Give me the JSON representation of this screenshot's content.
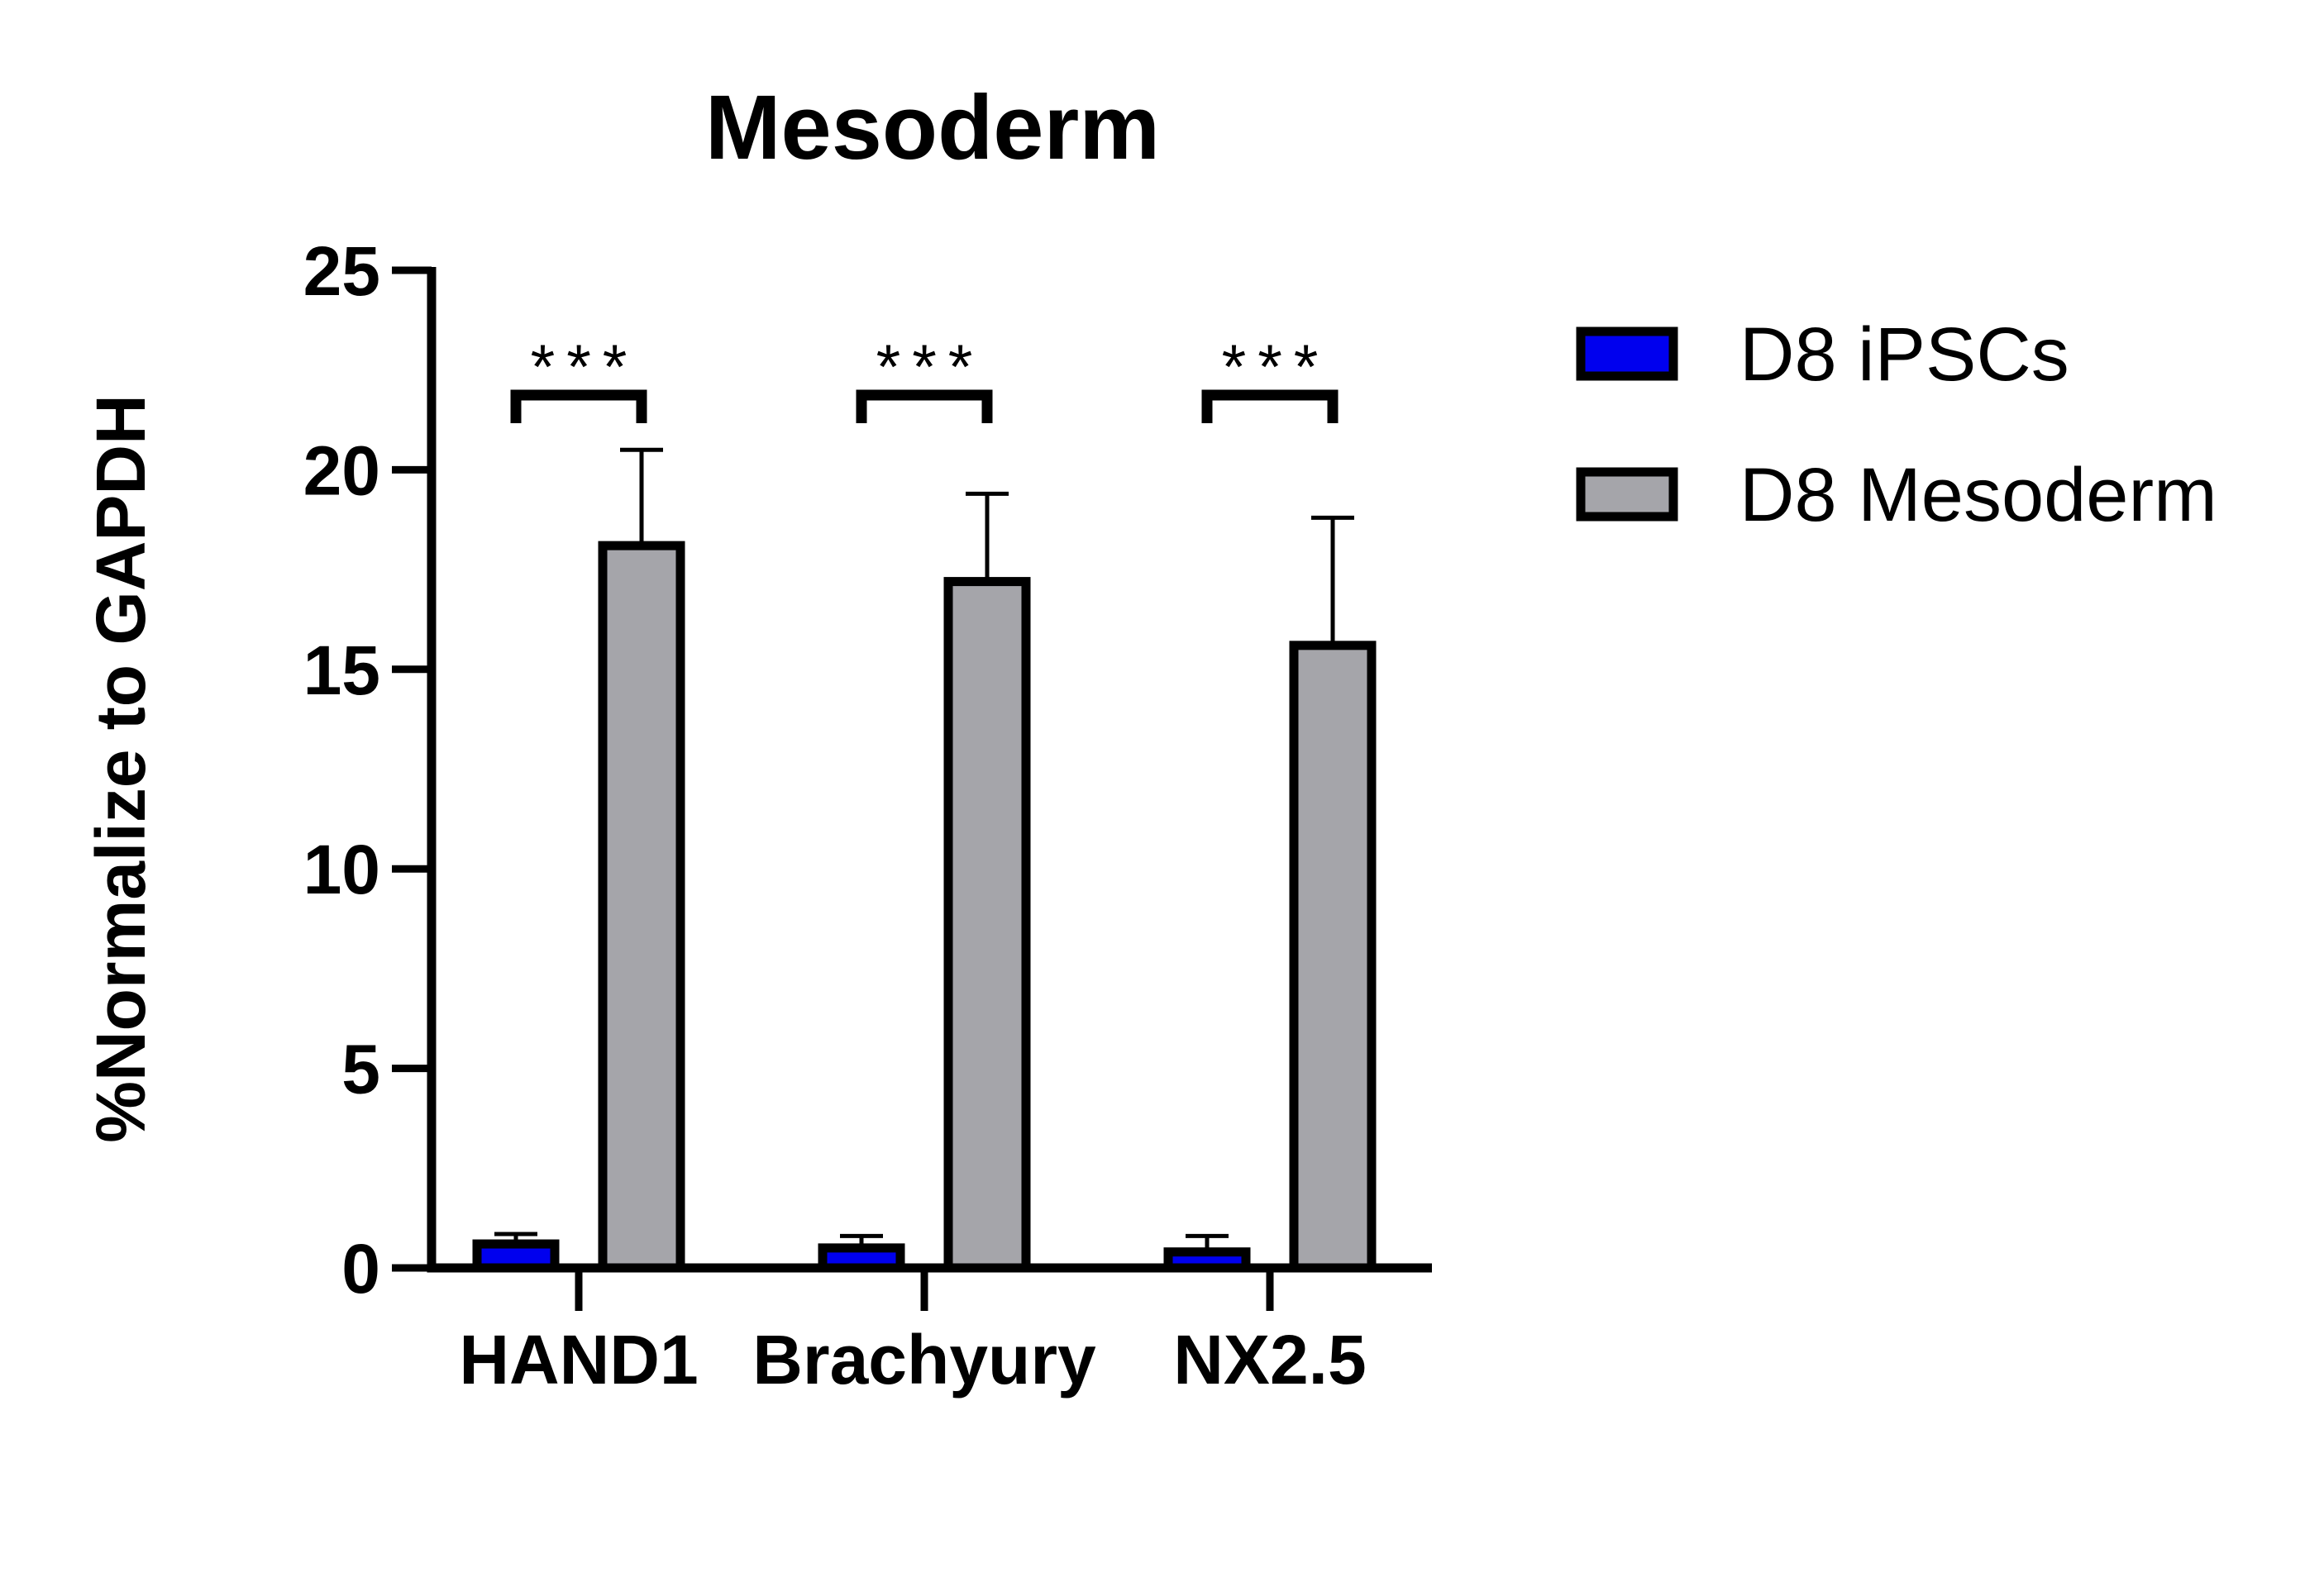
{
  "chart_data": {
    "type": "bar",
    "title": "Mesoderm",
    "ylabel": "%Normalize to GAPDH",
    "xlabel": "",
    "ylim": [
      0,
      25
    ],
    "yticks": [
      0,
      5,
      10,
      15,
      20,
      25
    ],
    "ytick_labels": [
      "0",
      "5",
      "10",
      "15",
      "20",
      "25"
    ],
    "categories": [
      "HAND1",
      "Brachyury",
      "NX2.5"
    ],
    "series": [
      {
        "name": "D8 iPSCs",
        "color": "#0000ee",
        "values": [
          0.6,
          0.5,
          0.4
        ],
        "errors": [
          0.25,
          0.3,
          0.4
        ]
      },
      {
        "name": "D8 Mesoderm",
        "color": "#a5a5aa",
        "values": [
          18.1,
          17.2,
          15.6
        ],
        "errors": [
          2.4,
          2.2,
          3.2
        ]
      }
    ],
    "significance": [
      "***",
      "***",
      "***"
    ],
    "legend_position": "right",
    "grid": false
  }
}
